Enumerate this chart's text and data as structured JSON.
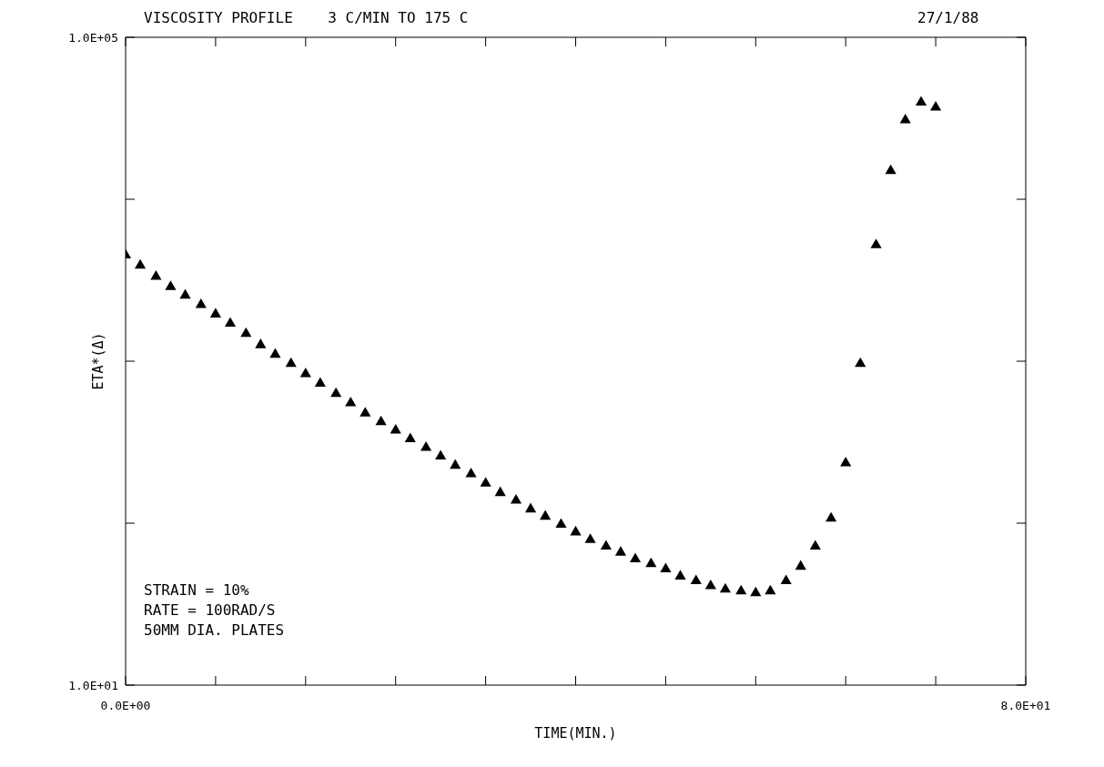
{
  "chart_data": {
    "type": "scatter",
    "title": "VISCOSITY PROFILE    3 C/MIN TO 175 C",
    "xlabel": "TIME(MIN.)",
    "ylabel": "ETA*(Δ)",
    "annotations": [
      "27/1/88",
      "STRAIN = 10%",
      "RATE = 100RAD/S",
      "50MM DIA. PLATES"
    ],
    "x": [
      0,
      1.3,
      2.7,
      4,
      5.3,
      6.7,
      8,
      9.3,
      10.7,
      12,
      13.3,
      14.7,
      16,
      17.3,
      18.7,
      20,
      21.3,
      22.7,
      24,
      25.3,
      26.7,
      28,
      29.3,
      30.7,
      32,
      33.3,
      34.7,
      36,
      37.3,
      38.7,
      40,
      41.3,
      42.7,
      44,
      45.3,
      46.7,
      48,
      49.3,
      50.7,
      52,
      53.3,
      54.7,
      56,
      57.3,
      58.7,
      60,
      61.3,
      62.7,
      64,
      65.3,
      66.7,
      68,
      69.3,
      70.7,
      72
    ],
    "series": [
      {
        "color": "#000000",
        "values": [
          4510,
          3900,
          3330,
          2880,
          2550,
          2230,
          1950,
          1710,
          1480,
          1260,
          1100,
          964,
          834,
          729,
          630,
          551,
          477,
          422,
          374,
          331,
          293,
          259,
          227,
          201,
          176,
          154,
          138,
          122,
          110,
          98,
          88,
          79,
          72,
          66,
          60,
          56,
          52,
          47,
          44,
          41,
          39,
          38,
          37,
          38,
          44,
          54,
          72,
          107,
          235,
          964,
          5220,
          15000,
          30800,
          39700,
          36900
        ]
      }
    ],
    "xlim": [
      0,
      80
    ],
    "xticks": [
      {
        "value": 0,
        "label": "0.0E+00"
      },
      {
        "value": 8,
        "label": null
      },
      {
        "value": 16,
        "label": null
      },
      {
        "value": 24,
        "label": null
      },
      {
        "value": 32,
        "label": null
      },
      {
        "value": 40,
        "label": null
      },
      {
        "value": 48,
        "label": null
      },
      {
        "value": 56,
        "label": null
      },
      {
        "value": 64,
        "label": null
      },
      {
        "value": 72,
        "label": null
      },
      {
        "value": 80,
        "label": "8.0E+01"
      }
    ],
    "ylim": [
      10,
      100000
    ],
    "yticks": [
      {
        "value": 10,
        "label": "1.0E+01"
      },
      {
        "value": 100,
        "label": null
      },
      {
        "value": 1000,
        "label": null
      },
      {
        "value": 10000,
        "label": null
      },
      {
        "value": 100000,
        "label": "1.0E+05"
      }
    ],
    "log": "y",
    "marker": "triangle"
  }
}
